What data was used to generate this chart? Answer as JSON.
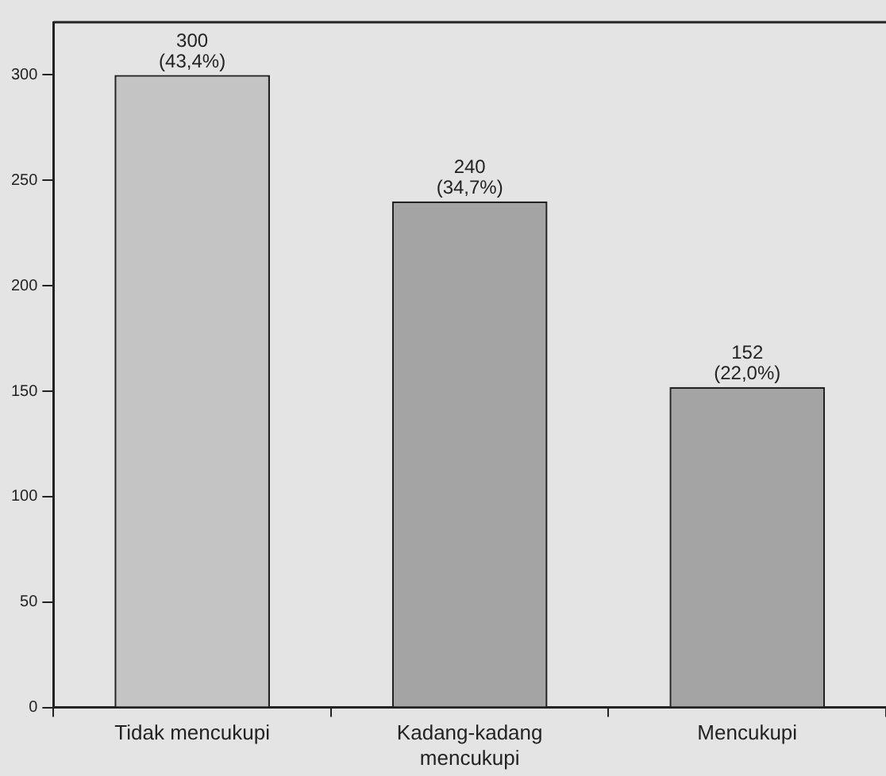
{
  "chart_data": {
    "type": "bar",
    "categories": [
      "Tidak mencukupi",
      "Kadang-kadang mencukupi",
      "Mencukupi"
    ],
    "values": [
      300,
      240,
      152
    ],
    "colors": [
      "#c4c4c4",
      "#a4a4a4",
      "#a4a4a4"
    ],
    "value_labels": [
      "300\n(43,4%)",
      "240\n(34,7%)",
      "152\n(22,0%)"
    ],
    "ylim": [
      0,
      325
    ],
    "yticks": [
      0,
      50,
      100,
      150,
      200,
      250,
      300
    ],
    "grid": false,
    "legend": false
  }
}
